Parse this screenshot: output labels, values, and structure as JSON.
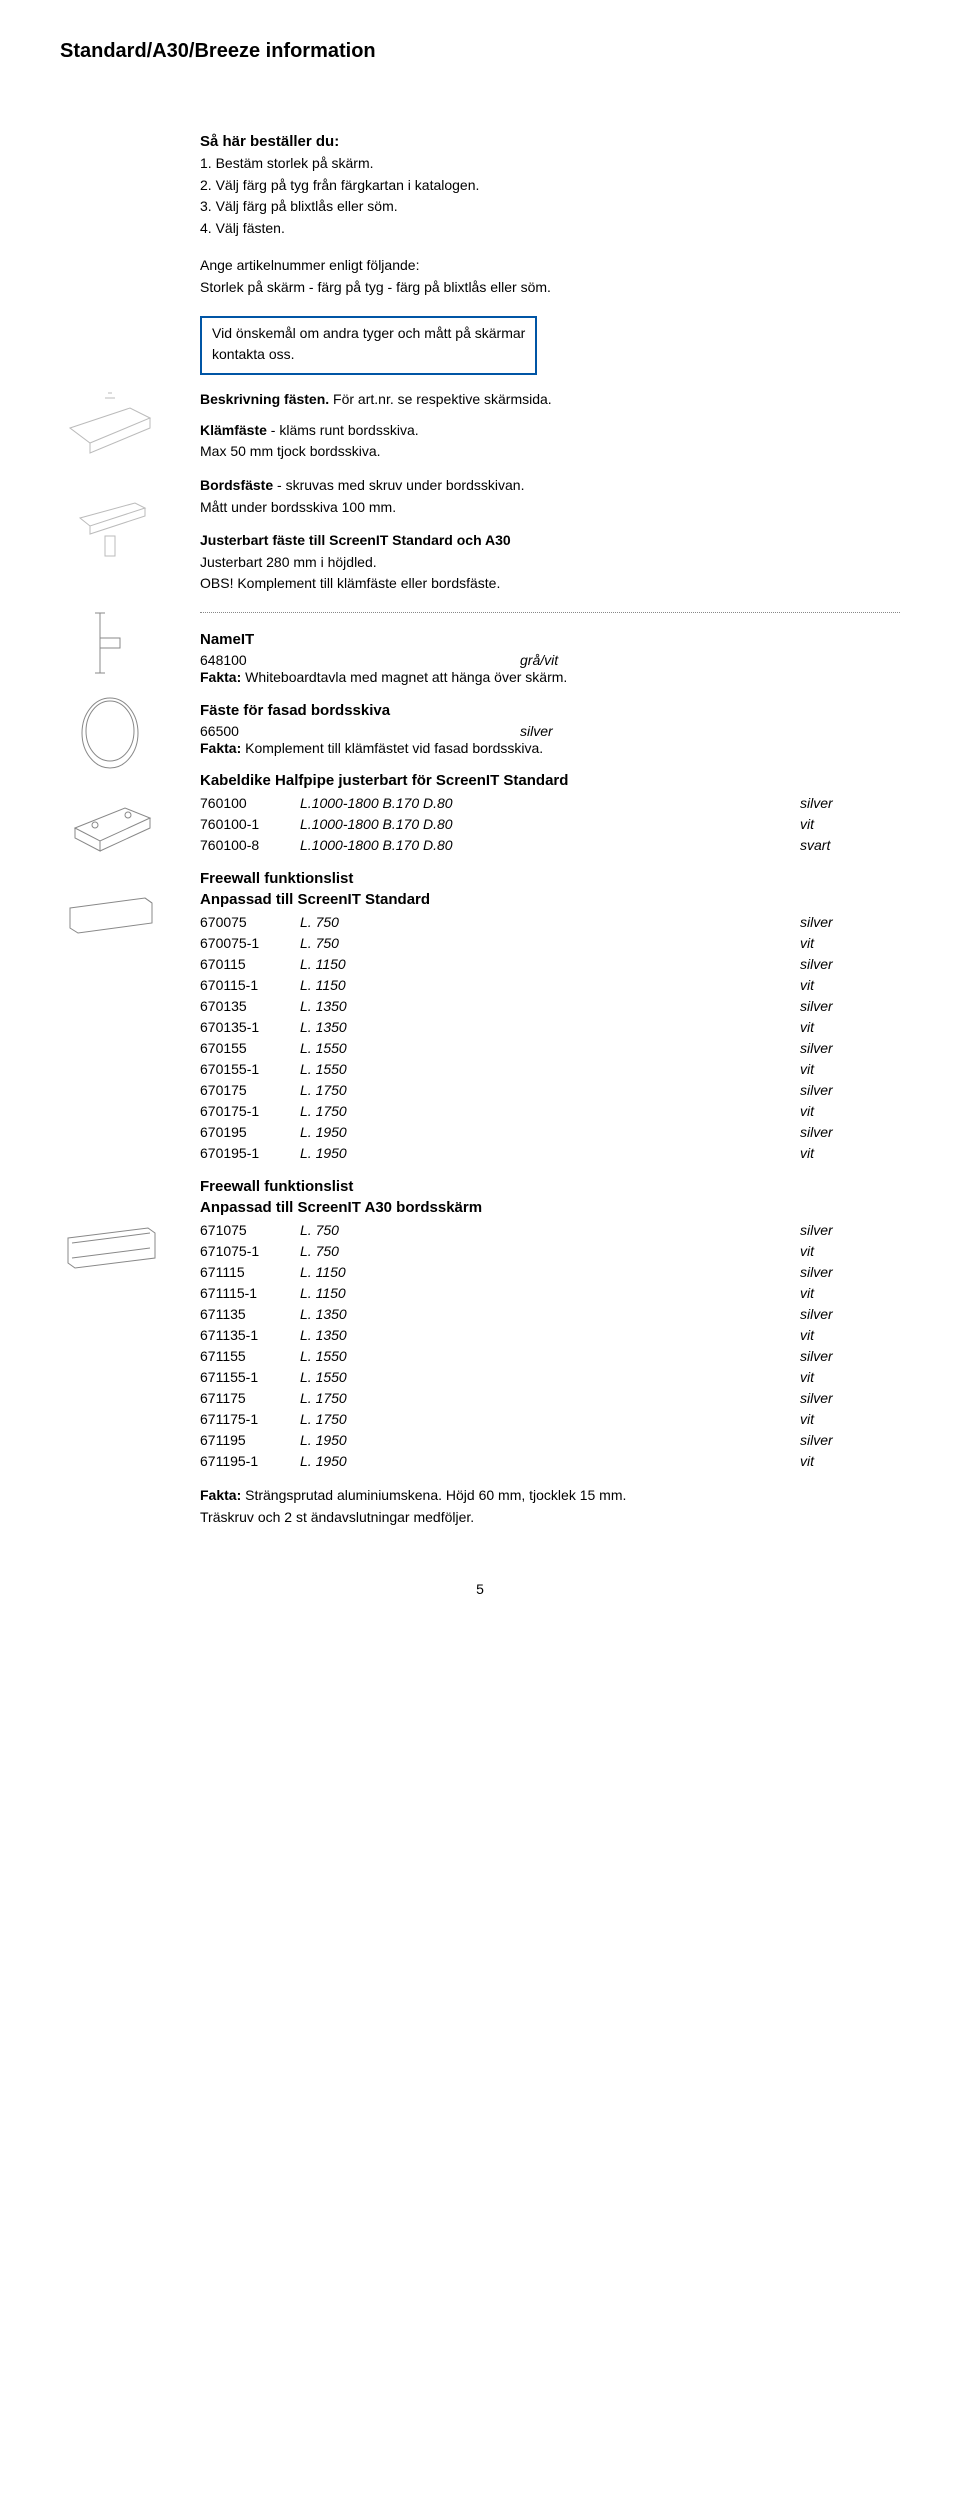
{
  "page": {
    "title": "Standard/A30/Breeze information",
    "number": "5"
  },
  "order": {
    "heading": "Så här beställer du:",
    "steps": [
      "1. Bestäm storlek på skärm.",
      "2. Välj färg på tyg från färgkartan i katalogen.",
      "3. Välj färg på blixtlås eller söm.",
      "4. Välj fästen."
    ],
    "format_head": "Ange artikelnummer enligt följande:",
    "format_line": "Storlek på skärm - färg på tyg - färg på blixtlås eller söm."
  },
  "notice": {
    "line1": "Vid önskemål om andra tyger och mått på skärmar",
    "line2": "kontakta oss."
  },
  "desc": {
    "line1_a": "Beskrivning fästen. ",
    "line1_b": "För art.nr. se respektive skärmsida."
  },
  "klam": {
    "head": "Klämfäste",
    "rest": " - kläms runt bordsskiva.",
    "sub": "Max 50 mm tjock bordsskiva."
  },
  "bord": {
    "head": "Bordsfäste",
    "rest": " - skruvas med skruv under bordsskivan.",
    "sub": "Mått under bordsskiva 100 mm."
  },
  "just": {
    "head": "Justerbart fäste till ScreenIT Standard och A30",
    "sub1": "Justerbart 280 mm i höjdled.",
    "sub2": "OBS! Komplement till klämfäste eller bordsfäste."
  },
  "nameit": {
    "head": "NameIT",
    "art": "648100",
    "color": "grå/vit",
    "fact_label": "Fakta: ",
    "fact": "Whiteboardtavla med magnet att hänga över skärm."
  },
  "faste_fasad": {
    "head": "Fäste för fasad bordsskiva",
    "art": "66500",
    "color": "silver",
    "fact_label": "Fakta: ",
    "fact": "Komplement till klämfästet vid fasad bordsskiva."
  },
  "kabeldike": {
    "head": "Kabeldike Halfpipe justerbart för ScreenIT Standard",
    "rows": [
      {
        "art": "760100",
        "dim": "L.1000-1800  B.170  D.80",
        "color": "silver"
      },
      {
        "art": "760100-1",
        "dim": "L.1000-1800  B.170  D.80",
        "color": "vit"
      },
      {
        "art": "760100-8",
        "dim": "L.1000-1800  B.170  D.80",
        "color": "svart"
      }
    ]
  },
  "freewall_std": {
    "head1": "Freewall funktionslist",
    "head2": "Anpassad till ScreenIT Standard",
    "rows": [
      {
        "art": "670075",
        "dim": "L. 750",
        "color": "silver"
      },
      {
        "art": "670075-1",
        "dim": "L. 750",
        "color": "vit"
      },
      {
        "art": "670115",
        "dim": "L. 1150",
        "color": "silver"
      },
      {
        "art": "670115-1",
        "dim": "L. 1150",
        "color": "vit"
      },
      {
        "art": "670135",
        "dim": "L. 1350",
        "color": "silver"
      },
      {
        "art": "670135-1",
        "dim": "L. 1350",
        "color": "vit"
      },
      {
        "art": "670155",
        "dim": "L. 1550",
        "color": "silver"
      },
      {
        "art": "670155-1",
        "dim": "L. 1550",
        "color": "vit"
      },
      {
        "art": "670175",
        "dim": "L. 1750",
        "color": "silver"
      },
      {
        "art": "670175-1",
        "dim": "L. 1750",
        "color": "vit"
      },
      {
        "art": "670195",
        "dim": "L. 1950",
        "color": "silver"
      },
      {
        "art": "670195-1",
        "dim": "L. 1950",
        "color": "vit"
      }
    ]
  },
  "freewall_a30": {
    "head1": "Freewall funktionslist",
    "head2": "Anpassad till ScreenIT A30 bordsskärm",
    "rows": [
      {
        "art": "671075",
        "dim": "L. 750",
        "color": "silver"
      },
      {
        "art": "671075-1",
        "dim": "L. 750",
        "color": "vit"
      },
      {
        "art": "671115",
        "dim": "L. 1150",
        "color": "silver"
      },
      {
        "art": "671115-1",
        "dim": "L. 1150",
        "color": "vit"
      },
      {
        "art": "671135",
        "dim": "L. 1350",
        "color": "silver"
      },
      {
        "art": "671135-1",
        "dim": "L. 1350",
        "color": "vit"
      },
      {
        "art": "671155",
        "dim": "L. 1550",
        "color": "silver"
      },
      {
        "art": "671155-1",
        "dim": "L. 1550",
        "color": "vit"
      },
      {
        "art": "671175",
        "dim": "L. 1750",
        "color": "silver"
      },
      {
        "art": "671175-1",
        "dim": "L. 1750",
        "color": "vit"
      },
      {
        "art": "671195",
        "dim": "L. 1950",
        "color": "silver"
      },
      {
        "art": "671195-1",
        "dim": "L. 1950",
        "color": "vit"
      }
    ]
  },
  "final_fact": {
    "label": "Fakta: ",
    "line1": "Strängsprutad aluminiumskena. Höjd 60 mm, tjocklek 15 mm.",
    "line2": "Träskruv och 2 st ändavslutningar medföljer."
  }
}
